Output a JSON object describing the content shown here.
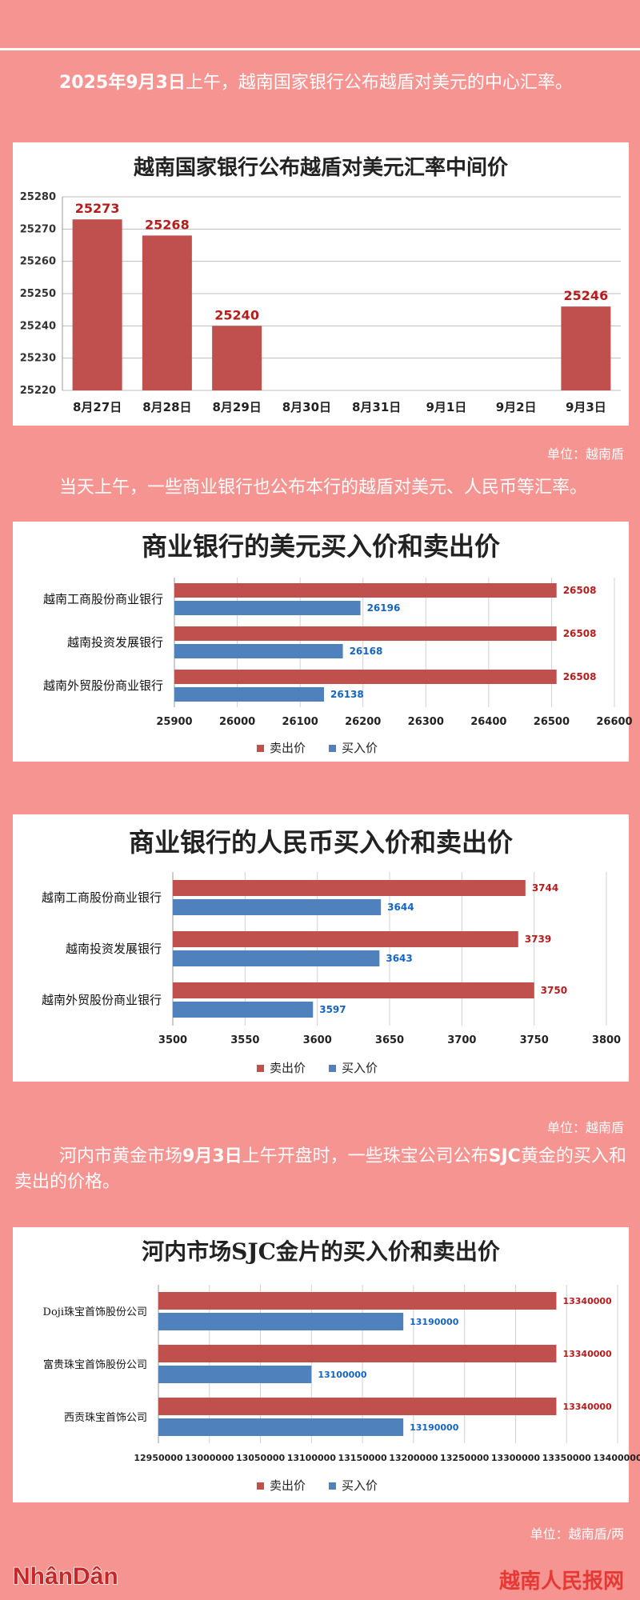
{
  "intro1": {
    "pre": "",
    "date": "2025年9月3日",
    "post": "上午，越南国家银行公布越盾对美元的中心汇率。"
  },
  "unit1": "单位：越南盾",
  "intro2": "当天上午，一些商业银行也公布本行的越盾对美元、人民币等汇率。",
  "unit2": "单位：越南盾",
  "intro3": {
    "pre": "河内市黄金市场",
    "date": "9月3日",
    "mid": "上午开盘时，一些珠宝公司公布",
    "brand": "SJC",
    "post": "黄金的买入和卖出的价格。"
  },
  "unit3": "单位：越南盾/两",
  "footer": {
    "logo": "NhânDân",
    "site": "越南人民报网"
  },
  "colors": {
    "bg": "#f59490",
    "sell": "#c0504d",
    "buy": "#4f81bd"
  },
  "chart_data": [
    {
      "type": "bar",
      "title": "越南国家银行公布越盾对美元汇率中间价",
      "categories": [
        "8月27日",
        "8月28日",
        "8月29日",
        "8月30日",
        "8月31日",
        "9月1日",
        "9月2日",
        "9月3日"
      ],
      "values": [
        25273,
        25268,
        25240,
        null,
        null,
        null,
        null,
        25246
      ],
      "ylim": [
        25220,
        25280
      ],
      "yticks": [
        25220,
        25230,
        25240,
        25250,
        25260,
        25270,
        25280
      ],
      "grid": true
    },
    {
      "type": "bar",
      "orientation": "horizontal",
      "title": "商业银行的美元买入价和卖出价",
      "categories": [
        "越南工商股份商业银行",
        "越南投资发展银行",
        "越南外贸股份商业银行"
      ],
      "series": [
        {
          "name": "卖出价",
          "values": [
            26508,
            26508,
            26508
          ]
        },
        {
          "name": "买入价",
          "values": [
            26196,
            26168,
            26138
          ]
        }
      ],
      "xlim": [
        25900,
        26600
      ],
      "xticks": [
        25900,
        26000,
        26100,
        26200,
        26300,
        26400,
        26500,
        26600
      ],
      "legend": "bottom"
    },
    {
      "type": "bar",
      "orientation": "horizontal",
      "title": "商业银行的人民币买入价和卖出价",
      "categories": [
        "越南工商股份商业银行",
        "越南投资发展银行",
        "越南外贸股份商业银行"
      ],
      "series": [
        {
          "name": "卖出价",
          "values": [
            3744,
            3739,
            3750
          ]
        },
        {
          "name": "买入价",
          "values": [
            3644,
            3643,
            3597
          ]
        }
      ],
      "xlim": [
        3500,
        3800
      ],
      "xticks": [
        3500,
        3550,
        3600,
        3650,
        3700,
        3750,
        3800
      ],
      "legend": "bottom"
    },
    {
      "type": "bar",
      "orientation": "horizontal",
      "title": "河内市场SJC金片的买入价和卖出价",
      "categories": [
        "Doji珠宝首饰股份公司",
        "富贵珠宝首饰股份公司",
        "西贡珠宝首饰公司"
      ],
      "series": [
        {
          "name": "卖出价",
          "values": [
            13340000,
            13340000,
            13340000
          ]
        },
        {
          "name": "买入价",
          "values": [
            13190000,
            13100000,
            13190000
          ]
        }
      ],
      "xlim": [
        12950000,
        13400000
      ],
      "xticks": [
        12950000,
        13000000,
        13050000,
        13100000,
        13150000,
        13200000,
        13250000,
        13300000,
        13350000,
        13400000
      ],
      "legend": "bottom"
    }
  ]
}
